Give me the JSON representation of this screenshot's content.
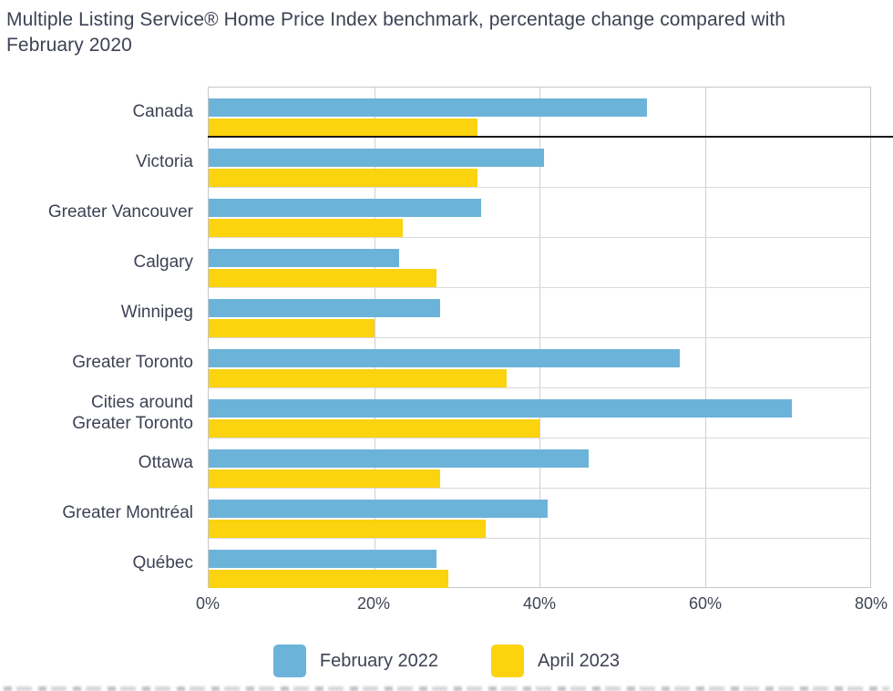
{
  "title": "Multiple Listing Service® Home Price Index benchmark, percentage change compared with February 2020",
  "chart_data": {
    "type": "bar",
    "orientation": "horizontal",
    "categories": [
      "Canada",
      "Victoria",
      "Greater Vancouver",
      "Calgary",
      "Winnipeg",
      "Greater Toronto",
      "Cities around\nGreater Toronto",
      "Ottawa",
      "Greater Montréal",
      "Québec"
    ],
    "series": [
      {
        "name": "February 2022",
        "color": "#6cb3da",
        "values": [
          53,
          40.5,
          33,
          23,
          28,
          57,
          70.5,
          46,
          41,
          27.5
        ]
      },
      {
        "name": "April 2023",
        "color": "#fbd30e",
        "values": [
          32.5,
          32.5,
          23.5,
          27.5,
          20,
          36,
          40,
          28,
          33.5,
          29
        ]
      }
    ],
    "xlabel": "",
    "ylabel": "",
    "xlim": [
      0,
      80
    ],
    "x_ticks": [
      "0%",
      "20%",
      "40%",
      "60%",
      "80%"
    ],
    "grid": true,
    "legend_position": "bottom",
    "separator_after_category": "Canada"
  },
  "colors": {
    "series_1": "#6cb3da",
    "series_2": "#fbd30e",
    "text": "#3d4254",
    "gridline": "#cfcfcf",
    "row_line": "#d9d9d9",
    "plot_border": "#c6c6c6",
    "separator": "#1a1a1a"
  }
}
